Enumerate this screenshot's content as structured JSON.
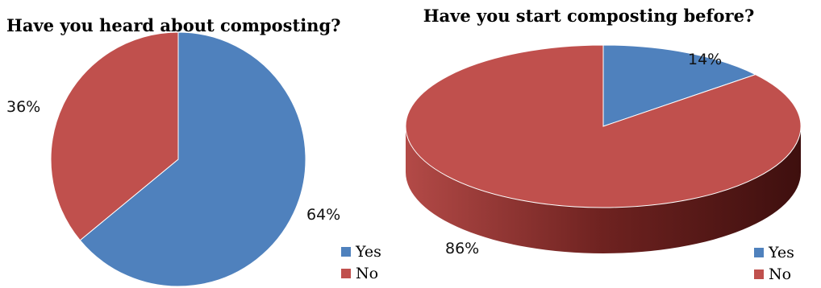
{
  "chart_data": [
    {
      "type": "pie",
      "title": "Have you heard about composting?",
      "categories": [
        "Yes",
        "No"
      ],
      "values": [
        64,
        36
      ],
      "value_labels": [
        "64%",
        "36%"
      ],
      "colors": [
        "#4f81bd",
        "#c0504d"
      ],
      "legend_placement": "bottom-right"
    },
    {
      "type": "pie",
      "title": "Have you start composting before?",
      "categories": [
        "Yes",
        "No"
      ],
      "values": [
        14,
        86
      ],
      "value_labels": [
        "14%",
        "86%"
      ],
      "colors": [
        "#4f81bd",
        "#c0504d"
      ],
      "style": "3d",
      "legend_placement": "bottom-right"
    }
  ]
}
